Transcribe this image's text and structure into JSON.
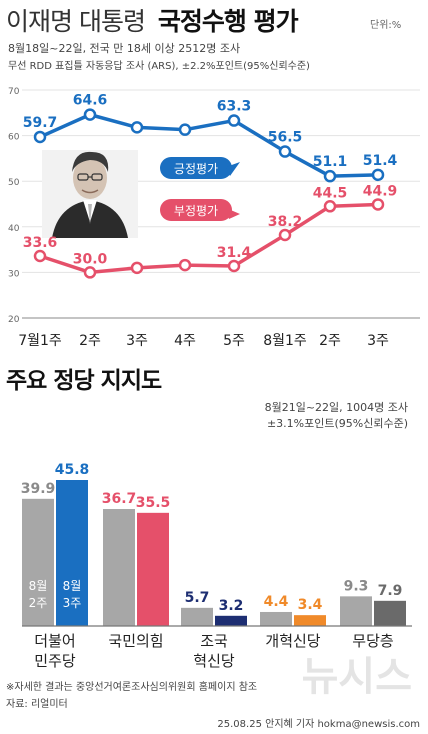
{
  "header": {
    "title_light": "이재명 대통령",
    "title_bold": "국정수행 평가",
    "unit": "단위:%",
    "survey_line1": "8월18일~22일, 전국 만 18세 이상 2512명 조사",
    "survey_line2": "무선 RDD 표집틀 자동응답 조사 (ARS), ±2.2%포인트(95%신뢰수준)"
  },
  "colors": {
    "positive": "#1a6fc1",
    "negative": "#e5506a",
    "gray_bar": "#a7a7a7",
    "dark_gray_bar": "#6a6a6a",
    "pink_bar": "#e5506a",
    "blue_bar": "#1a6fc1",
    "navy_bar": "#1d2e72",
    "orange_bar": "#f08a2a",
    "axis_text": "#666666"
  },
  "icons": {
    "portrait": "president-portrait-icon",
    "watermark": "newsis-watermark-logo"
  },
  "chart_data": [
    {
      "type": "line",
      "title": "이재명 대통령 국정수행 평가",
      "unit": "단위:%",
      "categories": [
        "7월1주",
        "2주",
        "3주",
        "4주",
        "5주",
        "8월1주",
        "2주",
        "3주"
      ],
      "ylim": [
        20,
        70
      ],
      "yticks": [
        "70",
        "60",
        "50",
        "40",
        "30",
        "20"
      ],
      "grid": true,
      "series": [
        {
          "name": "긍정평가",
          "values": [
            59.7,
            64.6,
            61.8,
            61.3,
            63.3,
            56.5,
            51.1,
            51.4
          ],
          "labels": [
            "59.7",
            "64.6",
            "",
            "",
            "63.3",
            "56.5",
            "51.1",
            "51.4"
          ]
        },
        {
          "name": "부정평가",
          "values": [
            33.6,
            30.0,
            31.0,
            31.6,
            31.4,
            38.2,
            44.5,
            44.9
          ],
          "labels": [
            "33.6",
            "30.0",
            "",
            "",
            "31.4",
            "38.2",
            "44.5",
            "44.9"
          ]
        }
      ]
    },
    {
      "type": "bar",
      "title": "주요 정당 지지도",
      "survey_line1": "8월21일~22일, 1004명 조사",
      "survey_line2": "±3.1%포인트(95%신뢰수준)",
      "groups": [
        {
          "line1": "더불어",
          "line2": "민주당",
          "prev": 39.9,
          "curr": 45.8,
          "prev_label": "39.9",
          "curr_label": "45.8"
        },
        {
          "line1": "국민의힘",
          "line2": "",
          "prev": 36.7,
          "curr": 35.5,
          "prev_label": "36.7",
          "curr_label": "35.5"
        },
        {
          "line1": "조국",
          "line2": "혁신당",
          "prev": 5.7,
          "curr": 3.2,
          "prev_label": "5.7",
          "curr_label": "3.2"
        },
        {
          "line1": "개혁신당",
          "line2": "",
          "prev": 4.4,
          "curr": 3.4,
          "prev_label": "4.4",
          "curr_label": "3.4"
        },
        {
          "line1": "무당층",
          "line2": "",
          "prev": 9.3,
          "curr": 7.9,
          "prev_label": "9.3",
          "curr_label": "7.9"
        }
      ],
      "period_prev": [
        "8월",
        "2주"
      ],
      "period_curr": [
        "8월",
        "3주"
      ]
    }
  ],
  "footer": {
    "note": "※자세한 결과는 중앙선거여론조사심의위원회 홈페이지 참조",
    "source": "자료: 리얼미터",
    "credit": "25.08.25 안지혜 기자 hokma@newsis.com"
  }
}
